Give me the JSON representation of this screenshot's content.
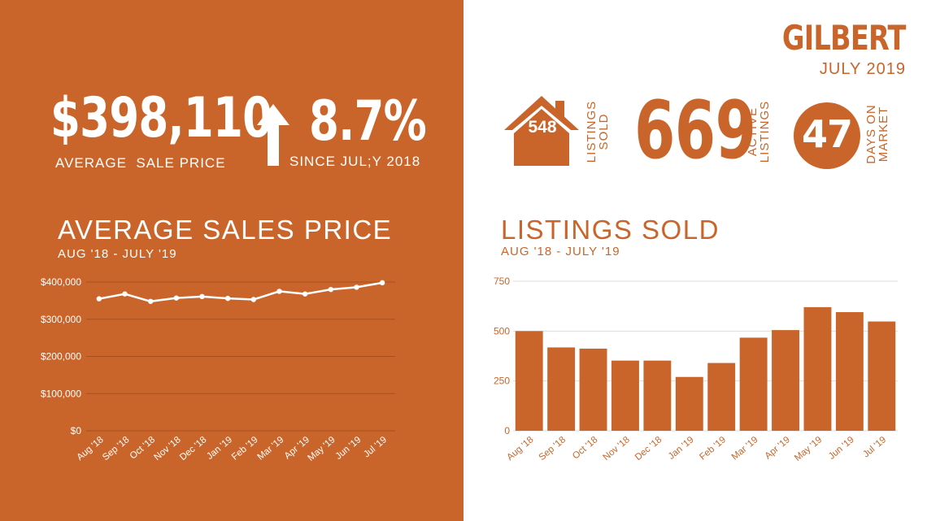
{
  "header": {
    "city": "GILBERT",
    "period": "JULY 2019"
  },
  "price_stat": {
    "value": "$398,110",
    "label": "AVERAGE  SALE PRICE"
  },
  "change_stat": {
    "value": "8.7%",
    "label": "SINCE JUL;Y 2018"
  },
  "listings_sold_stat": {
    "value": "548",
    "label_line1": "LISTINGS",
    "label_line2": "SOLD"
  },
  "active_listings_stat": {
    "value": "669",
    "label_line1": "ACTIVE",
    "label_line2": "LISTINGS"
  },
  "days_on_market_stat": {
    "value": "47",
    "label_line1": "DAYS ON",
    "label_line2": "MARKET"
  },
  "colors": {
    "accent": "#c9652a",
    "white": "#ffffff"
  },
  "icons": {
    "up_arrow": "up-arrow-icon",
    "house": "house-icon",
    "circle": "circle-badge-icon"
  },
  "chart_data": [
    {
      "type": "line",
      "title": "AVERAGE SALES PRICE",
      "subtitle": "AUG '18 - JULY '19",
      "categories": [
        "Aug '18",
        "Sep '18",
        "Oct '18",
        "Nov '18",
        "Dec '18",
        "Jan '19",
        "Feb '19",
        "Mar '19",
        "Apr '19",
        "May '19",
        "Jun '19",
        "Jul '19"
      ],
      "values": [
        355000,
        368000,
        348000,
        357000,
        361000,
        356000,
        353000,
        375000,
        368000,
        380000,
        386000,
        398110
      ],
      "yticks": [
        0,
        100000,
        200000,
        300000,
        400000
      ],
      "ytick_labels": [
        "$0",
        "$100,000",
        "$200,000",
        "$300,000",
        "$400,000"
      ],
      "ylim": [
        0,
        400000
      ],
      "grid": true
    },
    {
      "type": "bar",
      "title": "LISTINGS SOLD",
      "subtitle": "AUG '18 - JULY '19",
      "categories": [
        "Aug '18",
        "Sep '18",
        "Oct '18",
        "Nov '18",
        "Dec '18",
        "Jan '19",
        "Feb '19",
        "Mar '19",
        "Apr '19",
        "May '19",
        "Jun '19",
        "Jul '19"
      ],
      "values": [
        500,
        418,
        412,
        352,
        352,
        270,
        340,
        467,
        505,
        620,
        595,
        548
      ],
      "yticks": [
        0,
        250,
        500,
        750
      ],
      "ytick_labels": [
        "0",
        "250",
        "500",
        "750"
      ],
      "ylim": [
        0,
        750
      ],
      "grid": true
    }
  ]
}
